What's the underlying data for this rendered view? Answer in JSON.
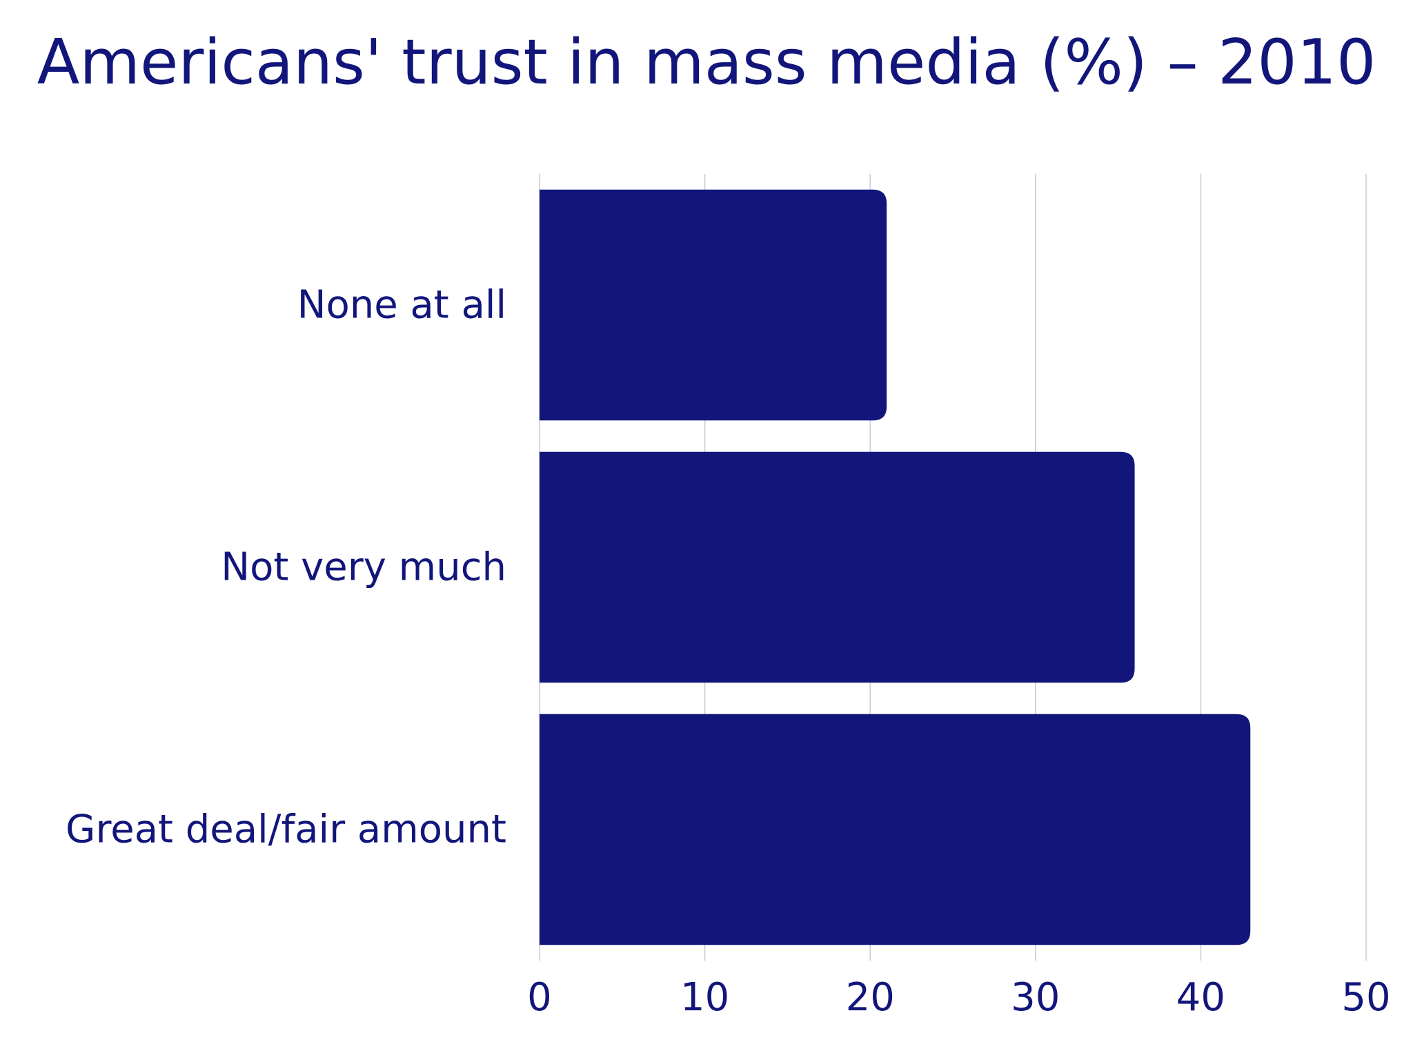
{
  "chart_data": {
    "type": "bar",
    "orientation": "horizontal",
    "title": "Americans' trust in mass media (%) – 2010",
    "categories": [
      "None at all",
      "Not very much",
      "Great deal/fair amount"
    ],
    "values": [
      21,
      36,
      43
    ],
    "xlim": [
      0,
      50
    ],
    "xticks": [
      "0",
      "10",
      "20",
      "30",
      "40",
      "50"
    ],
    "grid": true,
    "colors": {
      "bar": "#12167b",
      "text": "#12167b",
      "grid": "#c8c8dc"
    }
  }
}
